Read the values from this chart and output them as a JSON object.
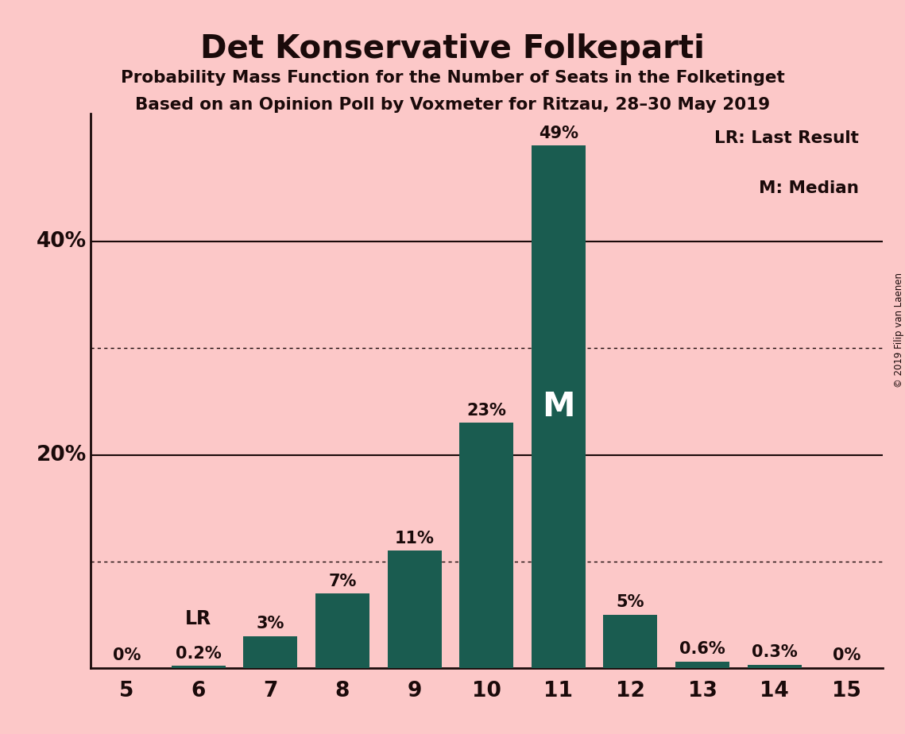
{
  "title": "Det Konservative Folkeparti",
  "subtitle1": "Probability Mass Function for the Number of Seats in the Folketinget",
  "subtitle2": "Based on an Opinion Poll by Voxmeter for Ritzau, 28–30 May 2019",
  "copyright": "© 2019 Filip van Laenen",
  "categories": [
    5,
    6,
    7,
    8,
    9,
    10,
    11,
    12,
    13,
    14,
    15
  ],
  "values": [
    0.0,
    0.2,
    3.0,
    7.0,
    11.0,
    23.0,
    49.0,
    5.0,
    0.6,
    0.3,
    0.0
  ],
  "bar_color": "#1a5c50",
  "background_color": "#fcc8c8",
  "text_color": "#1a0a0a",
  "bar_labels": [
    "0%",
    "0.2%",
    "3%",
    "7%",
    "11%",
    "23%",
    "49%",
    "5%",
    "0.6%",
    "0.3%",
    "0%"
  ],
  "lr_bar_index": 1,
  "median_bar_index": 6,
  "lr_label": "LR",
  "median_label": "M",
  "legend_lr": "LR: Last Result",
  "legend_m": "M: Median",
  "solid_yticks": [
    20,
    40
  ],
  "dotted_yticks": [
    10,
    30
  ],
  "ylim": [
    0,
    52
  ],
  "bar_width": 0.75
}
